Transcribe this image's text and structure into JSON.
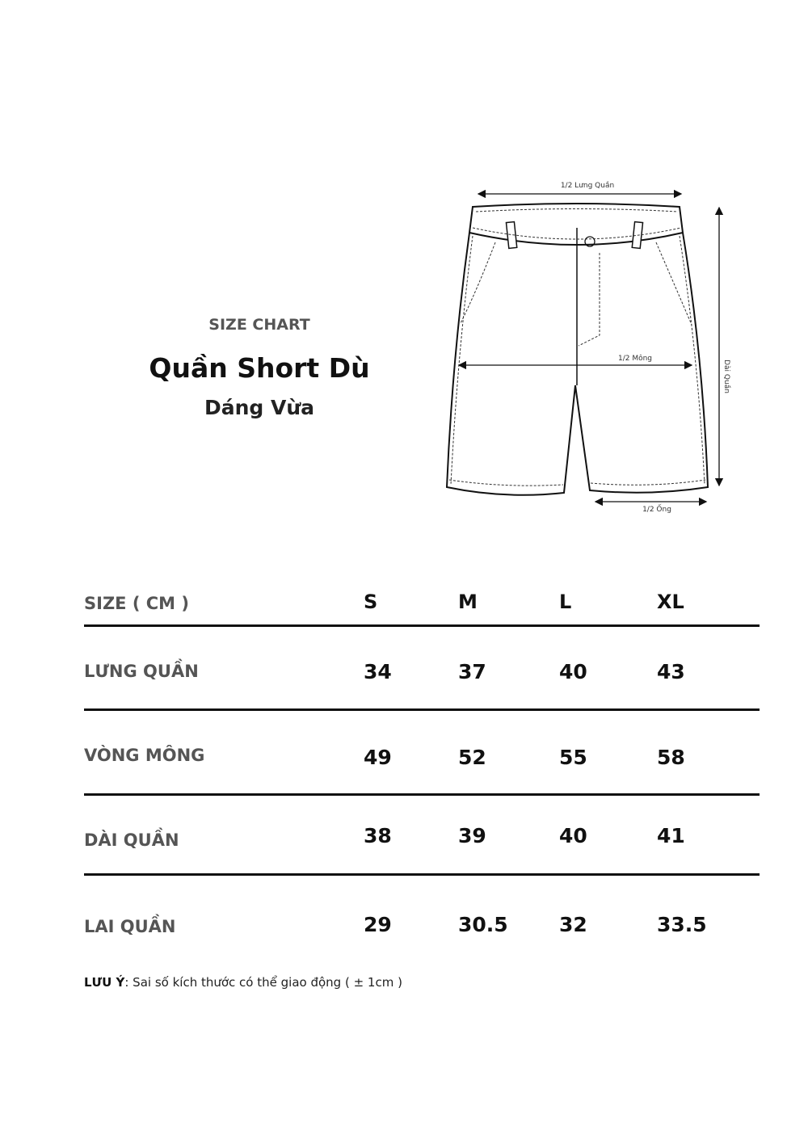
{
  "header": {
    "kicker": "SIZE CHART",
    "title": "Quần Short Dù",
    "subtitle": "Dáng Vừa"
  },
  "diagram": {
    "labels": {
      "waist": "1/2 Lưng Quần",
      "hip": "1/2 Mông",
      "length": "Dài Quần",
      "leg": "1/2 Ống"
    }
  },
  "table": {
    "header_label": "SIZE ( CM )",
    "sizes": [
      "S",
      "M",
      "L",
      "XL"
    ],
    "rows": [
      {
        "label": "LƯNG QUẦN",
        "values": [
          "34",
          "37",
          "40",
          "43"
        ]
      },
      {
        "label": "VÒNG MÔNG",
        "values": [
          "49",
          "52",
          "55",
          "58"
        ]
      },
      {
        "label": "DÀI QUẦN",
        "values": [
          "38",
          "39",
          "40",
          "41"
        ]
      },
      {
        "label": "LAI QUẦN",
        "values": [
          "29",
          "30.5",
          "32",
          "33.5"
        ]
      }
    ]
  },
  "note": {
    "label": "LƯU Ý",
    "text": ": Sai số kích thước có thể giao động ( ± 1cm )"
  }
}
